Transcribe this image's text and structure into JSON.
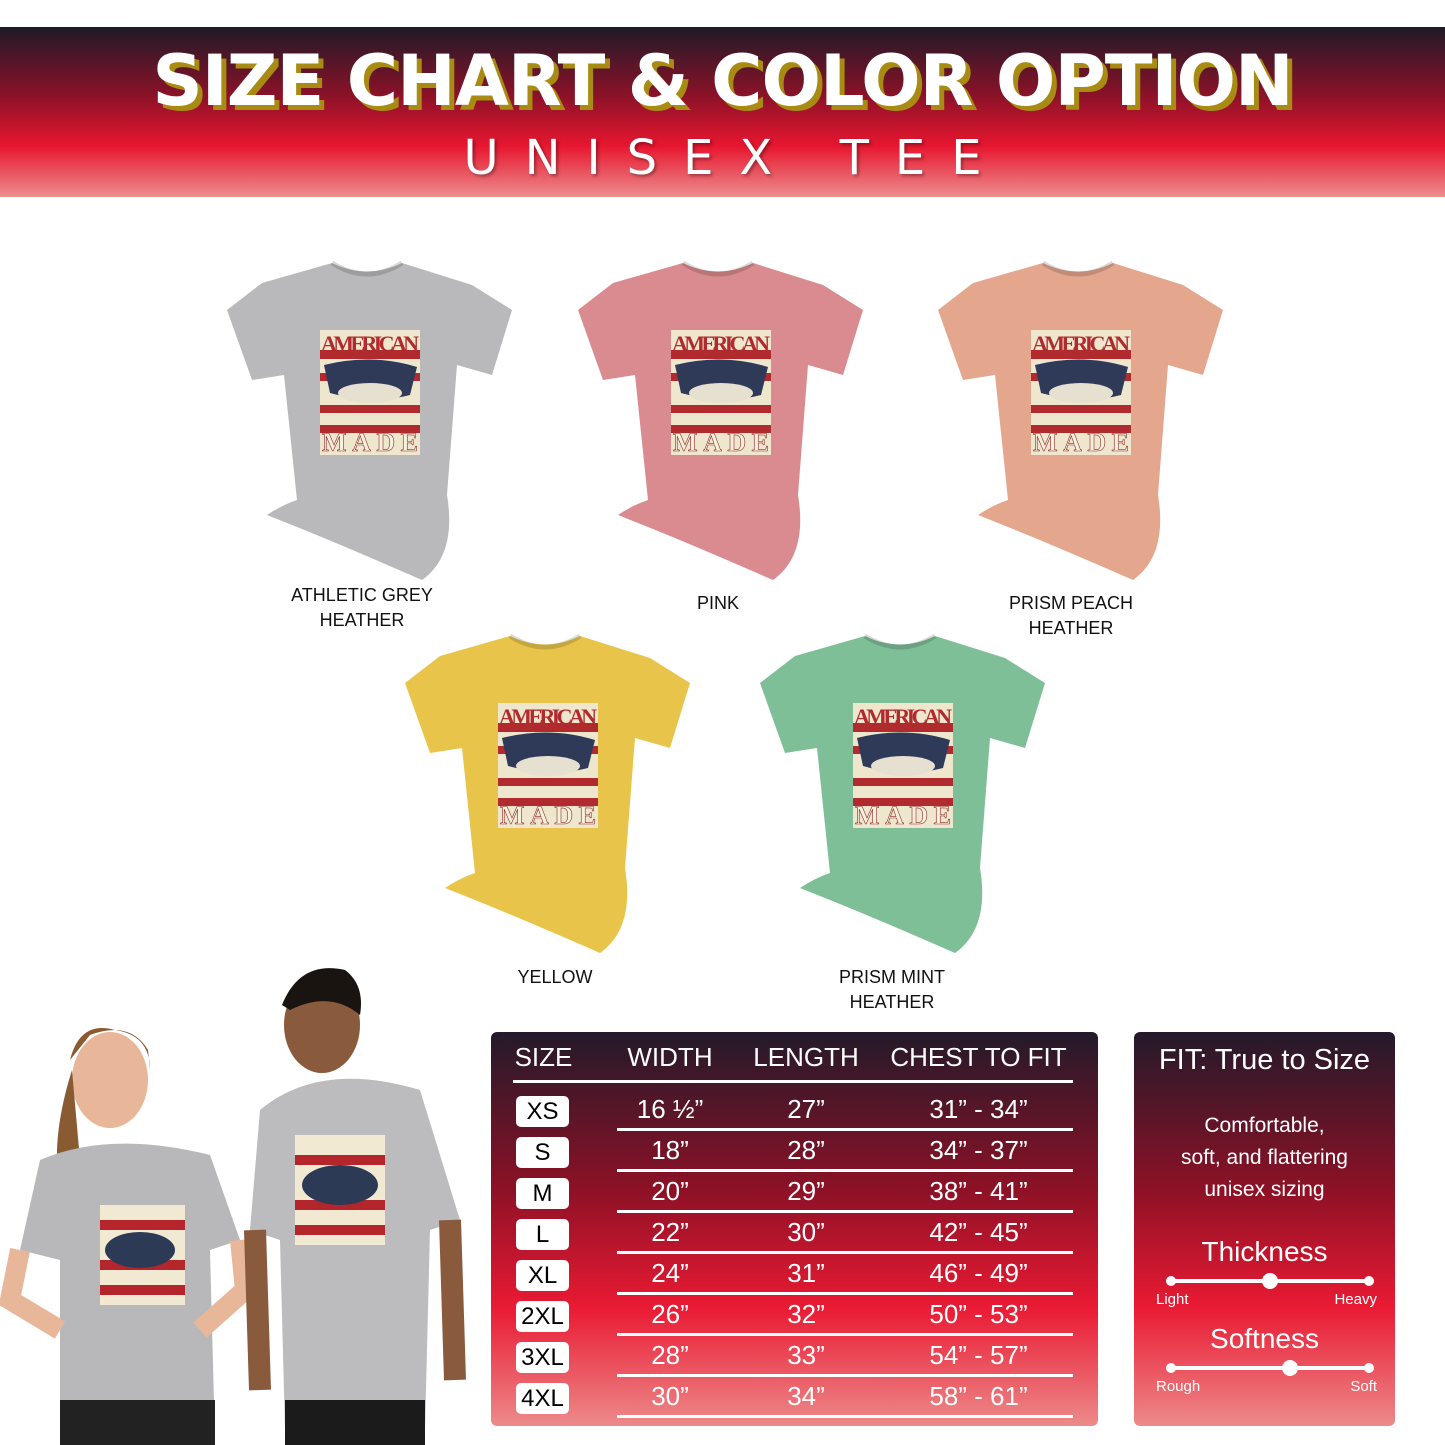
{
  "header": {
    "title": "SIZE CHART & COLOR OPTION",
    "subtitle": "UNISEX TEE"
  },
  "colors": [
    {
      "name": "ATHLETIC GREY HEATHER",
      "lines": [
        "ATHLETIC GREY",
        "HEATHER"
      ],
      "hex": "#b9b9bb"
    },
    {
      "name": "PINK",
      "lines": [
        "PINK",
        ""
      ],
      "hex": "#da8b8f"
    },
    {
      "name": "PRISM PEACH HEATHER",
      "lines": [
        "PRISM PEACH",
        "HEATHER"
      ],
      "hex": "#e4a68d"
    },
    {
      "name": "YELLOW",
      "lines": [
        "YELLOW",
        ""
      ],
      "hex": "#e8c54a"
    },
    {
      "name": "PRISM MINT HEATHER",
      "lines": [
        "PRISM MINT",
        "HEATHER"
      ],
      "hex": "#7fbf98"
    }
  ],
  "design_text": {
    "top": "AMERICAN",
    "bottom": "MADE"
  },
  "size_table": {
    "headers": [
      "SIZE",
      "WIDTH",
      "LENGTH",
      "CHEST TO FIT"
    ],
    "rows": [
      {
        "size": "XS",
        "width": "16 ½”",
        "length": "27”",
        "chest": "31” - 34”"
      },
      {
        "size": "S",
        "width": "18”",
        "length": "28”",
        "chest": "34” - 37”"
      },
      {
        "size": "M",
        "width": "20”",
        "length": "29”",
        "chest": "38” - 41”"
      },
      {
        "size": "L",
        "width": "22”",
        "length": "30”",
        "chest": "42” - 45”"
      },
      {
        "size": "XL",
        "width": "24”",
        "length": "31”",
        "chest": "46” - 49”"
      },
      {
        "size": "2XL",
        "width": "26”",
        "length": "32”",
        "chest": "50” - 53”"
      },
      {
        "size": "3XL",
        "width": "28”",
        "length": "33”",
        "chest": "54” - 57”"
      },
      {
        "size": "4XL",
        "width": "30”",
        "length": "34”",
        "chest": "58” - 61”"
      }
    ]
  },
  "fit": {
    "title": "FIT: True to Size",
    "description": [
      "Comfortable,",
      "soft, and flattering",
      "unisex sizing"
    ],
    "thickness": {
      "label": "Thickness",
      "min": "Light",
      "max": "Heavy",
      "level": 0.5
    },
    "softness": {
      "label": "Softness",
      "min": "Rough",
      "max": "Soft",
      "level": 0.6
    }
  }
}
